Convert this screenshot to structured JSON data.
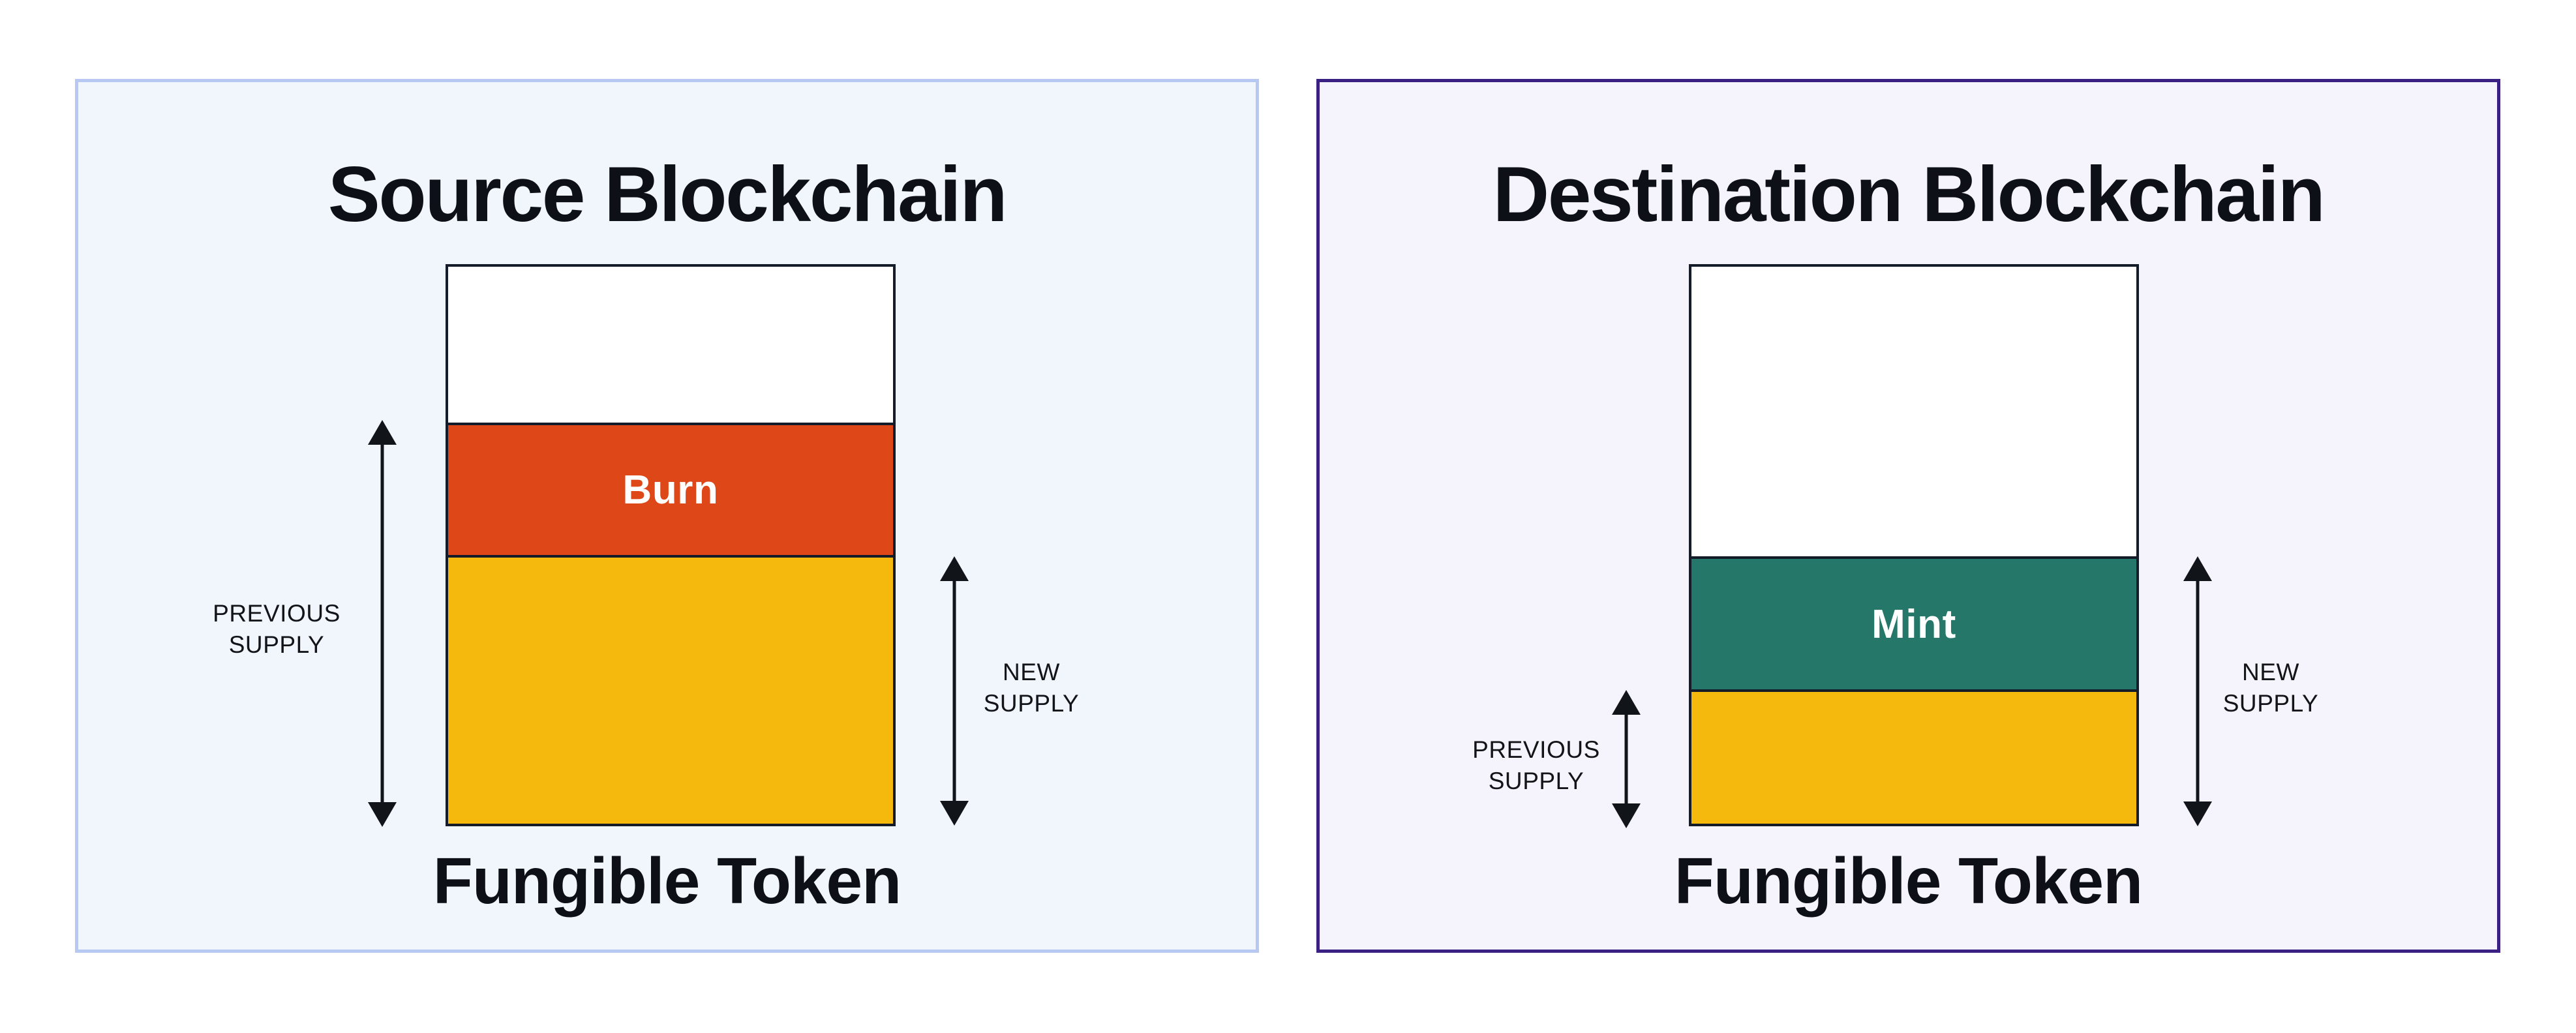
{
  "colors": {
    "page_bg": "#FFFFFF",
    "source_panel_bg": "#F1F5FC",
    "source_panel_border": "#B7C8F2",
    "dest_panel_bg": "#F5F3FB",
    "dest_panel_border": "#3A2083",
    "bar_outline": "#141B29",
    "bar_empty": "#FFFFFF",
    "burn": "#DE4718",
    "mint": "#257769",
    "token_supply_gold": "#F5B80D",
    "arrow": "#111418",
    "text": "#0D1016"
  },
  "source_panel": {
    "title": "Source Blockchain",
    "token_label": "Fungible Token",
    "bar": {
      "segments": [
        {
          "name": "empty-space",
          "label": ""
        },
        {
          "name": "burn",
          "label": "Burn"
        },
        {
          "name": "remaining-supply",
          "label": ""
        }
      ]
    },
    "previous_supply_label": "PREVIOUS\nSUPPLY",
    "new_supply_label": "NEW\nSUPPLY"
  },
  "dest_panel": {
    "title": "Destination Blockchain",
    "token_label": "Fungible Token",
    "bar": {
      "segments": [
        {
          "name": "empty-space",
          "label": ""
        },
        {
          "name": "mint",
          "label": "Mint"
        },
        {
          "name": "previous-supply",
          "label": ""
        }
      ]
    },
    "previous_supply_label": "PREVIOUS\nSUPPLY",
    "new_supply_label": "NEW\nSUPPLY"
  }
}
